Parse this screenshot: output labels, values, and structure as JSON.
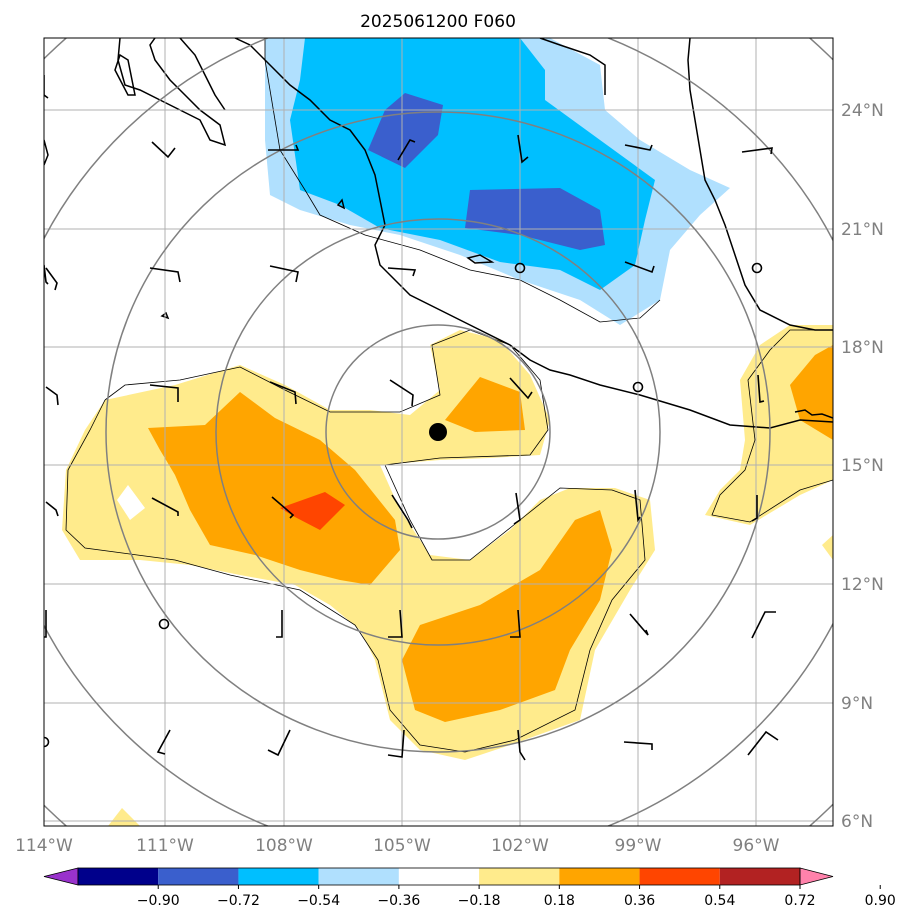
{
  "title": "2025061200 F060",
  "lon_labels": [
    "114°W",
    "111°W",
    "108°W",
    "105°W",
    "102°W",
    "99°W",
    "96°W"
  ],
  "lat_labels": [
    "24°N",
    "21°N",
    "18°N",
    "15°N",
    "12°N",
    "9°N",
    "6°N"
  ],
  "colorbar": {
    "ticks": [
      "−0.90",
      "−0.72",
      "−0.54",
      "−0.36",
      "−0.18",
      "0.18",
      "0.36",
      "0.54",
      "0.72",
      "0.90"
    ],
    "colors": [
      "#9932cc",
      "#00008b",
      "#3a5fcd",
      "#00bfff",
      "#b0e0fe",
      "#ffffff",
      "#ffeb8c",
      "#ffa500",
      "#ff4500",
      "#b22222",
      "#ff82ab"
    ]
  },
  "map": {
    "fill_colors": {
      "light_blue": "#b0e0fe",
      "blue": "#00bfff",
      "dark_blue": "#3a5fcd",
      "light_yellow": "#ffeb8c",
      "orange": "#ffa500",
      "red_orange": "#ff4500"
    },
    "center_marker": "storm-center",
    "range_rings": 5
  }
}
